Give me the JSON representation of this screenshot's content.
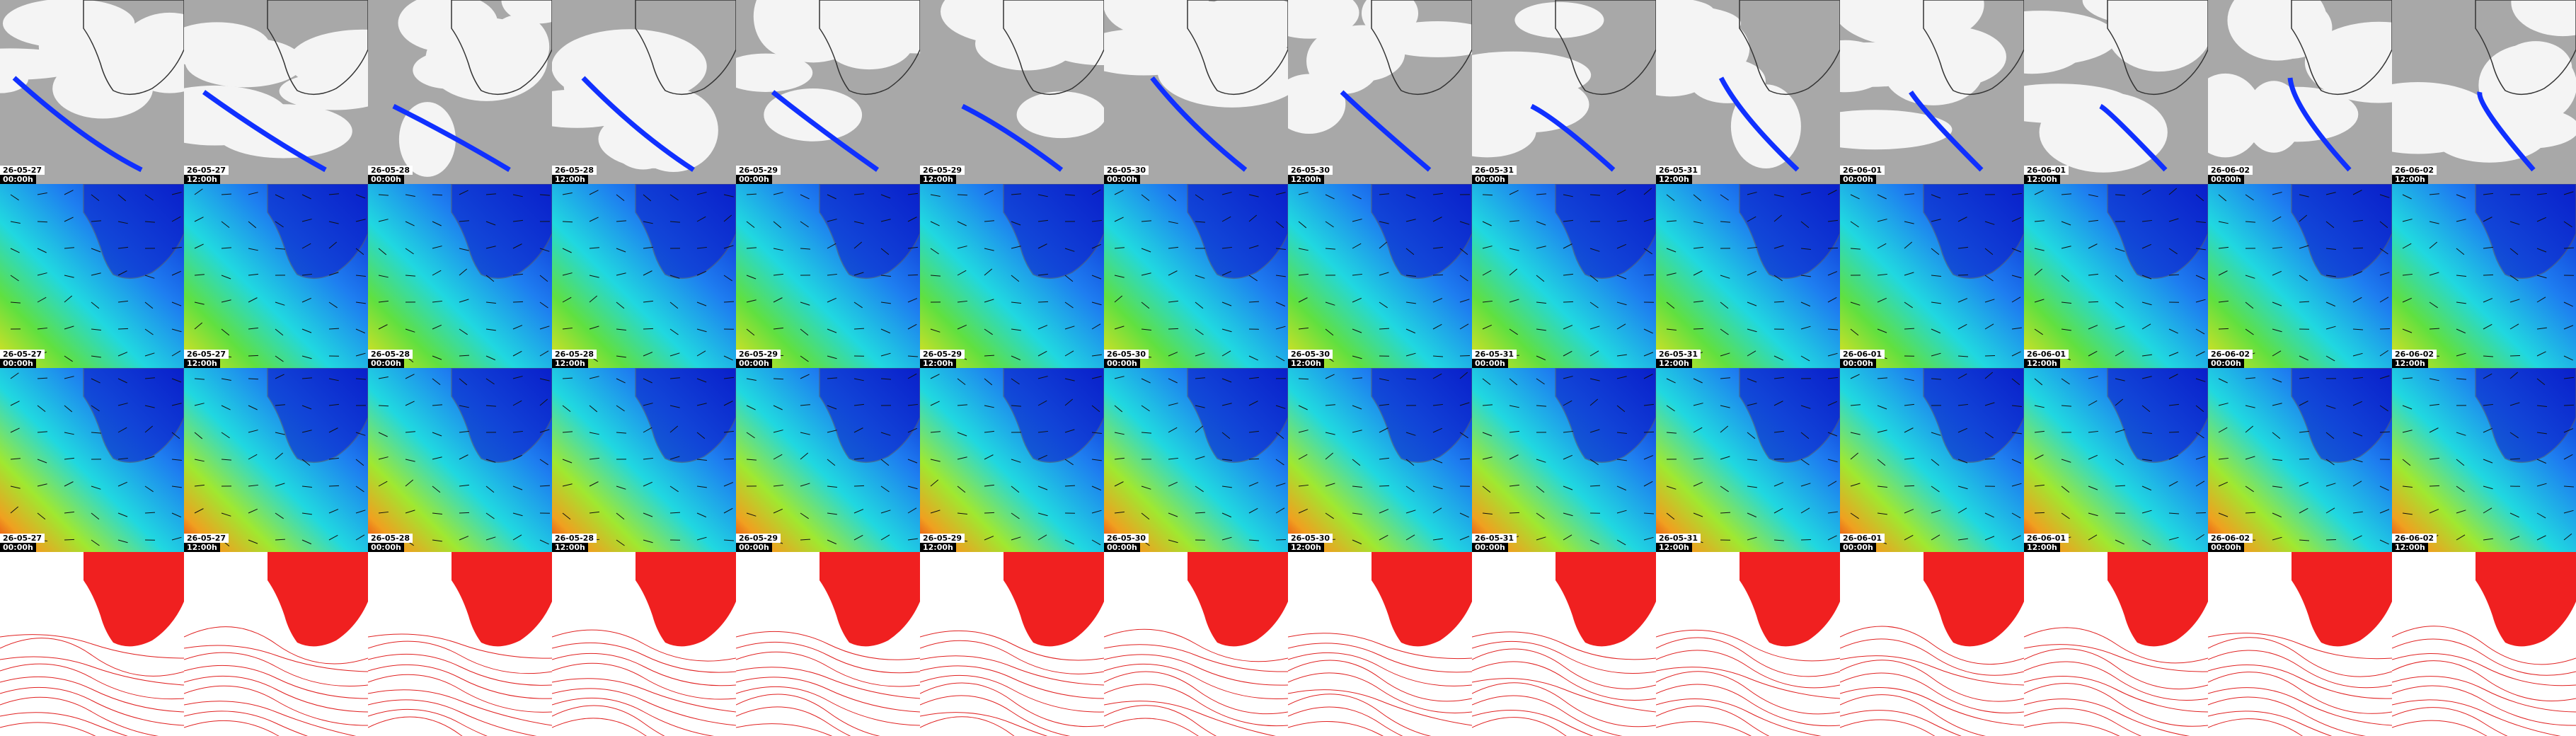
{
  "columns": [
    {
      "date": "26-05-27",
      "time": "00:00h"
    },
    {
      "date": "26-05-27",
      "time": "12:00h"
    },
    {
      "date": "26-05-28",
      "time": "00:00h"
    },
    {
      "date": "26-05-28",
      "time": "12:00h"
    },
    {
      "date": "26-05-29",
      "time": "00:00h"
    },
    {
      "date": "26-05-29",
      "time": "12:00h"
    },
    {
      "date": "26-05-30",
      "time": "00:00h"
    },
    {
      "date": "26-05-30",
      "time": "12:00h"
    },
    {
      "date": "26-05-31",
      "time": "00:00h"
    },
    {
      "date": "26-05-31",
      "time": "12:00h"
    },
    {
      "date": "26-06-01",
      "time": "00:00h"
    },
    {
      "date": "26-06-01",
      "time": "12:00h"
    },
    {
      "date": "26-06-02",
      "time": "00:00h"
    },
    {
      "date": "26-06-02",
      "time": "12:00h"
    }
  ]
}
